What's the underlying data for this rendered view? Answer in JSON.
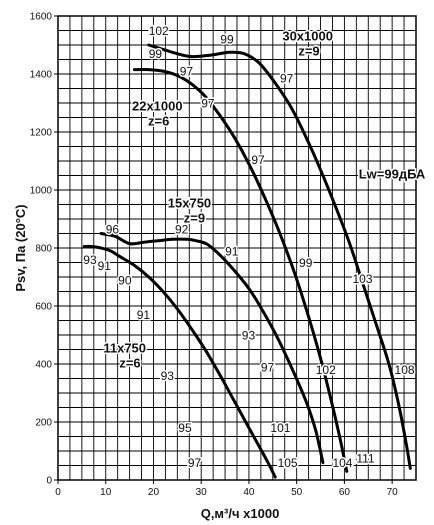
{
  "chart_data": {
    "type": "line",
    "xlabel": "Q,м³/ч x1000",
    "ylabel": "Psv, Па (20°C)",
    "xlim": [
      0,
      75
    ],
    "ylim": [
      0,
      1600
    ],
    "xticks": [
      0,
      10,
      20,
      30,
      40,
      50,
      60,
      70
    ],
    "yticks": [
      0,
      200,
      400,
      600,
      800,
      1000,
      1200,
      1400,
      1600
    ],
    "grid": true,
    "annotations": [
      {
        "text": "Lw=99дБА",
        "x": 63,
        "y": 1040
      }
    ],
    "series": [
      {
        "name": "11x750 z=6",
        "labels": [
          "11x750",
          "z=6"
        ],
        "label_at": [
          9.5,
          440
        ],
        "points": [
          [
            5.5,
            805
          ],
          [
            7,
            805
          ],
          [
            9,
            800
          ],
          [
            11,
            790
          ],
          [
            13,
            770
          ],
          [
            16,
            740
          ],
          [
            19,
            700
          ],
          [
            22,
            650
          ],
          [
            25,
            590
          ],
          [
            28,
            520
          ],
          [
            31,
            445
          ],
          [
            34,
            360
          ],
          [
            37,
            270
          ],
          [
            40,
            180
          ],
          [
            42,
            120
          ],
          [
            44,
            60
          ],
          [
            45.5,
            10
          ]
        ],
        "point_labels": [
          {
            "text": "93",
            "x": 5.3,
            "y": 745
          },
          {
            "text": "91",
            "x": 8.3,
            "y": 725
          },
          {
            "text": "90",
            "x": 12.6,
            "y": 675
          },
          {
            "text": "91",
            "x": 16.5,
            "y": 555
          },
          {
            "text": "93",
            "x": 21.5,
            "y": 345
          },
          {
            "text": "95",
            "x": 25.2,
            "y": 165
          },
          {
            "text": "97",
            "x": 27.2,
            "y": 45
          }
        ]
      },
      {
        "name": "15x750 z=9",
        "labels": [
          "15x750",
          "z=9"
        ],
        "label_at": [
          23,
          940
        ],
        "points": [
          [
            9,
            850
          ],
          [
            12,
            840
          ],
          [
            15,
            815
          ],
          [
            18,
            820
          ],
          [
            21,
            825
          ],
          [
            24,
            830
          ],
          [
            27,
            830
          ],
          [
            29,
            825
          ],
          [
            31,
            815
          ],
          [
            33,
            790
          ],
          [
            36,
            740
          ],
          [
            40,
            660
          ],
          [
            43,
            580
          ],
          [
            46,
            490
          ],
          [
            49,
            385
          ],
          [
            52,
            270
          ],
          [
            54,
            170
          ],
          [
            55.5,
            60
          ]
        ],
        "point_labels": [
          {
            "text": "96",
            "x": 10,
            "y": 850
          },
          {
            "text": "92",
            "x": 24.5,
            "y": 850
          },
          {
            "text": "91",
            "x": 35,
            "y": 775
          },
          {
            "text": "93",
            "x": 38.5,
            "y": 485
          },
          {
            "text": "97",
            "x": 42.5,
            "y": 375
          },
          {
            "text": "101",
            "x": 44.5,
            "y": 165
          },
          {
            "text": "105",
            "x": 46,
            "y": 45
          }
        ]
      },
      {
        "name": "22x1000 z=6",
        "labels": [
          "22x1000",
          "z=6"
        ],
        "label_at": [
          15.5,
          1275
        ],
        "points": [
          [
            16,
            1415
          ],
          [
            19,
            1415
          ],
          [
            22,
            1410
          ],
          [
            25,
            1395
          ],
          [
            28,
            1365
          ],
          [
            31,
            1320
          ],
          [
            34,
            1255
          ],
          [
            37,
            1180
          ],
          [
            40,
            1090
          ],
          [
            43,
            985
          ],
          [
            46,
            870
          ],
          [
            49,
            740
          ],
          [
            52,
            590
          ],
          [
            55,
            420
          ],
          [
            57,
            290
          ],
          [
            59,
            150
          ],
          [
            60.5,
            30
          ]
        ],
        "point_labels": [
          {
            "text": "99",
            "x": 19,
            "y": 1455
          },
          {
            "text": "97",
            "x": 30,
            "y": 1285
          },
          {
            "text": "97",
            "x": 40.5,
            "y": 1090
          },
          {
            "text": "99",
            "x": 50.5,
            "y": 735
          },
          {
            "text": "102",
            "x": 54,
            "y": 365
          },
          {
            "text": "104",
            "x": 57.5,
            "y": 45
          }
        ]
      },
      {
        "name": "30x1000 z=9",
        "labels": [
          "30x1000",
          "z=9"
        ],
        "label_at": [
          47,
          1515
        ],
        "points": [
          [
            19,
            1500
          ],
          [
            22,
            1485
          ],
          [
            25,
            1470
          ],
          [
            28,
            1460
          ],
          [
            32,
            1465
          ],
          [
            36,
            1475
          ],
          [
            39,
            1470
          ],
          [
            42,
            1440
          ],
          [
            45,
            1380
          ],
          [
            49,
            1280
          ],
          [
            53,
            1145
          ],
          [
            57,
            990
          ],
          [
            61,
            820
          ],
          [
            64,
            670
          ],
          [
            67,
            520
          ],
          [
            69.5,
            390
          ],
          [
            71.5,
            250
          ],
          [
            73,
            120
          ],
          [
            73.8,
            40
          ]
        ],
        "point_labels": [
          {
            "text": "102",
            "x": 19,
            "y": 1535
          },
          {
            "text": "99",
            "x": 34,
            "y": 1505
          },
          {
            "text": "97",
            "x": 25.5,
            "y": 1395
          },
          {
            "text": "97",
            "x": 46.5,
            "y": 1370
          },
          {
            "text": "103",
            "x": 61.7,
            "y": 680
          },
          {
            "text": "108",
            "x": 70.5,
            "y": 365
          },
          {
            "text": "111",
            "x": 62.5,
            "y": 60
          }
        ]
      }
    ]
  }
}
